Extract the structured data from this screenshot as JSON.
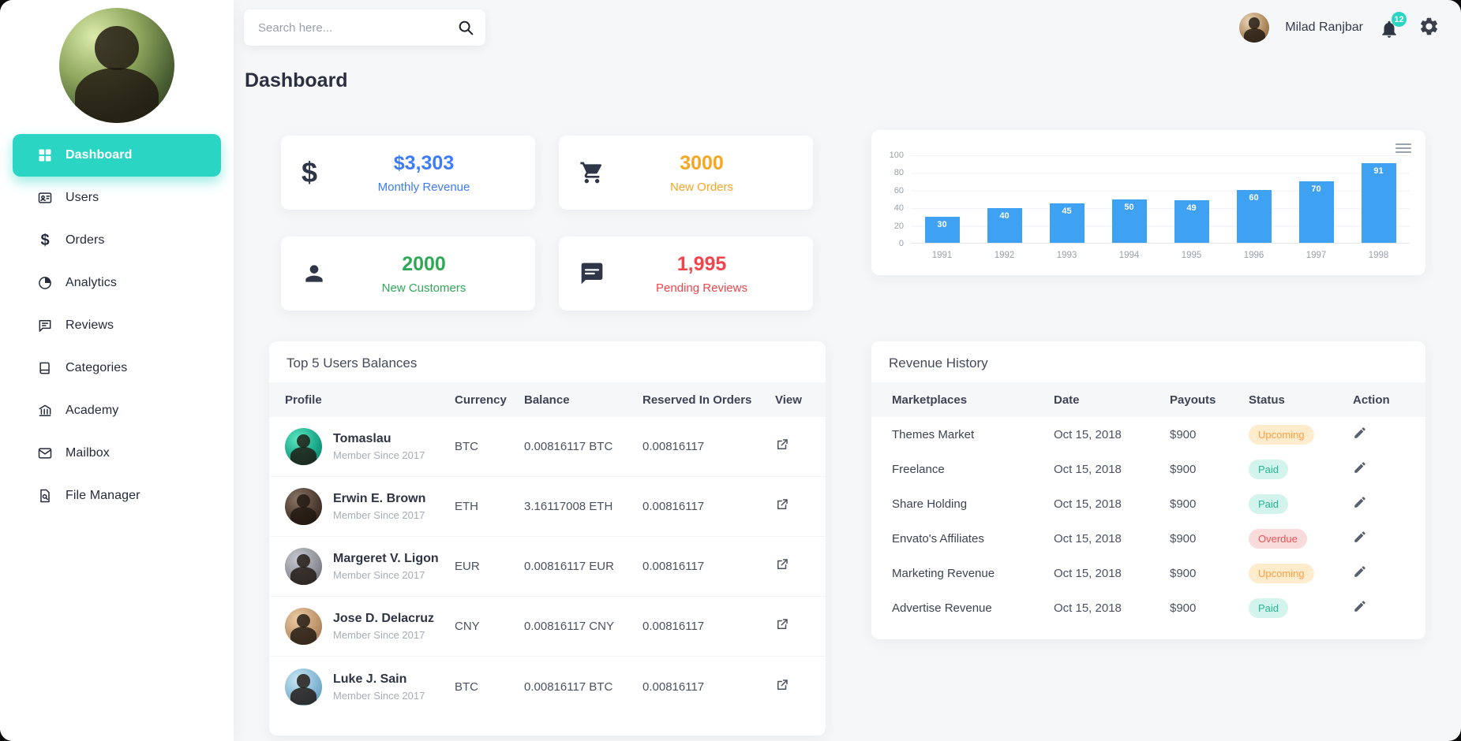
{
  "colors": {
    "accent": "#2bd5c4",
    "stat_blue": "#3e7bfa",
    "stat_orange": "#f5a623",
    "stat_green": "#30a857",
    "stat_red": "#f0454c",
    "bar_blue": "#3ea1f2",
    "badge_upcoming_fg": "#ff9f43",
    "badge_upcoming_bg": "#ffeccc",
    "badge_paid_fg": "#24b793",
    "badge_paid_bg": "#d3f4ec",
    "badge_overdue_fg": "#ea5455",
    "badge_overdue_bg": "#fadbdc"
  },
  "sidebar": {
    "items": [
      {
        "label": "Dashboard",
        "icon": "dashboard-grid-icon",
        "active": true
      },
      {
        "label": "Users",
        "icon": "users-card-icon"
      },
      {
        "label": "Orders",
        "icon": "dollar-icon"
      },
      {
        "label": "Analytics",
        "icon": "analytics-pie-icon"
      },
      {
        "label": "Reviews",
        "icon": "chat-icon"
      },
      {
        "label": "Categories",
        "icon": "book-icon"
      },
      {
        "label": "Academy",
        "icon": "academy-icon"
      },
      {
        "label": "Mailbox",
        "icon": "envelope-icon"
      },
      {
        "label": "File Manager",
        "icon": "file-search-icon"
      }
    ]
  },
  "header": {
    "search_placeholder": "Search here...",
    "user_name": "Milad Ranjbar",
    "notification_count": "12"
  },
  "page": {
    "title": "Dashboard"
  },
  "stats": [
    {
      "icon": "dollar-icon",
      "value": "$3,303",
      "label": "Monthly Revenue"
    },
    {
      "icon": "cart-icon",
      "value": "3000",
      "label": "New Orders"
    },
    {
      "icon": "person-icon",
      "value": "2000",
      "label": "New Customers"
    },
    {
      "icon": "chat-icon",
      "value": "1,995",
      "label": "Pending Reviews"
    }
  ],
  "chart_data": {
    "type": "bar",
    "categories": [
      "1991",
      "1992",
      "1993",
      "1994",
      "1995",
      "1996",
      "1997",
      "1998"
    ],
    "values": [
      30,
      40,
      45,
      50,
      49,
      60,
      70,
      91
    ],
    "title": "",
    "xlabel": "",
    "ylabel": "",
    "ylim": [
      0,
      100
    ],
    "yticks": [
      0,
      20,
      40,
      60,
      80,
      100
    ],
    "bar_color": "#3ea1f2",
    "grid": true,
    "legend": false,
    "value_labels": "inside-top-white"
  },
  "balances": {
    "title": "Top 5 Users Balances",
    "headers": [
      "Profile",
      "Currency",
      "Balance",
      "Reserved In Orders",
      "View"
    ],
    "rows": [
      {
        "name": "Tomaslau",
        "member": "Member Since 2017",
        "currency": "BTC",
        "balance": "0.00816117 BTC",
        "reserved": "0.00816117"
      },
      {
        "name": "Erwin E. Brown",
        "member": "Member Since 2017",
        "currency": "ETH",
        "balance": "3.16117008 ETH",
        "reserved": "0.00816117"
      },
      {
        "name": "Margeret V. Ligon",
        "member": "Member Since 2017",
        "currency": "EUR",
        "balance": "0.00816117 EUR",
        "reserved": "0.00816117"
      },
      {
        "name": "Jose D. Delacruz",
        "member": "Member Since 2017",
        "currency": "CNY",
        "balance": "0.00816117 CNY",
        "reserved": "0.00816117"
      },
      {
        "name": "Luke J. Sain",
        "member": "Member Since 2017",
        "currency": "BTC",
        "balance": "0.00816117 BTC",
        "reserved": "0.00816117"
      }
    ]
  },
  "revenue": {
    "title": "Revenue History",
    "headers": [
      "Marketplaces",
      "Date",
      "Payouts",
      "Status",
      "Action"
    ],
    "rows": [
      {
        "marketplace": "Themes Market",
        "date": "Oct 15, 2018",
        "payout": "$900",
        "status": "Upcoming"
      },
      {
        "marketplace": "Freelance",
        "date": "Oct 15, 2018",
        "payout": "$900",
        "status": "Paid"
      },
      {
        "marketplace": "Share Holding",
        "date": "Oct 15, 2018",
        "payout": "$900",
        "status": "Paid"
      },
      {
        "marketplace": "Envato's Affiliates",
        "date": "Oct 15, 2018",
        "payout": "$900",
        "status": "Overdue"
      },
      {
        "marketplace": "Marketing Revenue",
        "date": "Oct 15, 2018",
        "payout": "$900",
        "status": "Upcoming"
      },
      {
        "marketplace": "Advertise Revenue",
        "date": "Oct 15, 2018",
        "payout": "$900",
        "status": "Paid"
      }
    ]
  }
}
